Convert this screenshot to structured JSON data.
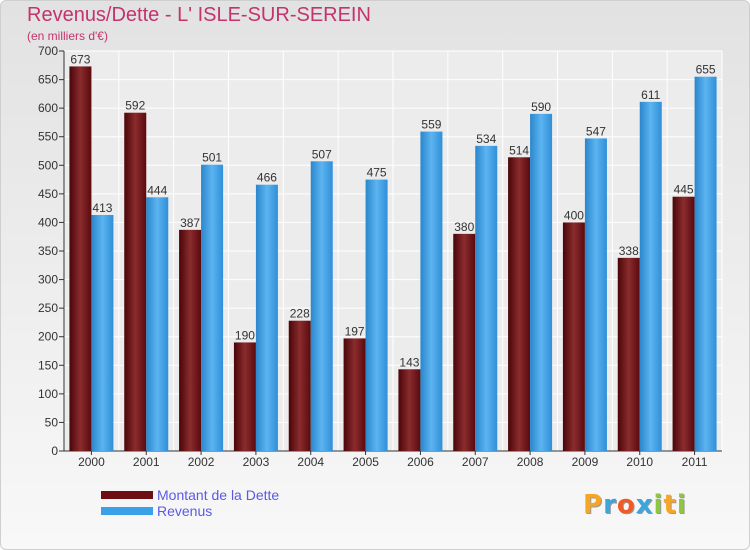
{
  "title": "Revenus/Dette - L' ISLE-SUR-SEREIN",
  "subtitle": "(en milliers d'€)",
  "logo": {
    "text": "Proxiti",
    "letters": [
      "P",
      "r",
      "o",
      "x",
      "i",
      "t",
      "i"
    ],
    "colors": [
      "#f6a623",
      "#3aa6dd",
      "#f05a28",
      "#3aa6dd",
      "#8dc63f",
      "#f6a623",
      "#8dc63f"
    ]
  },
  "colors": {
    "dette": "#6e0e12",
    "revenus": "#3aa0e8",
    "title": "#c4336b",
    "legend_text": "#5a5ae6"
  },
  "chart_data": {
    "type": "bar",
    "title": "Revenus/Dette - L' ISLE-SUR-SEREIN",
    "ylabel": "(en milliers d'€)",
    "categories": [
      "2000",
      "2001",
      "2002",
      "2003",
      "2004",
      "2005",
      "2006",
      "2007",
      "2008",
      "2009",
      "2010",
      "2011"
    ],
    "series": [
      {
        "name": "Montant de la Dette",
        "values": [
          673,
          592,
          387,
          190,
          228,
          197,
          143,
          380,
          514,
          400,
          338,
          445
        ]
      },
      {
        "name": "Revenus",
        "values": [
          413,
          444,
          501,
          466,
          507,
          475,
          559,
          534,
          590,
          547,
          611,
          655
        ]
      }
    ],
    "ylim": [
      0,
      700
    ],
    "yticks": [
      0,
      50,
      100,
      150,
      200,
      250,
      300,
      350,
      400,
      450,
      500,
      550,
      600,
      650,
      700
    ],
    "grid": true,
    "legend_position": "bottom-left"
  }
}
